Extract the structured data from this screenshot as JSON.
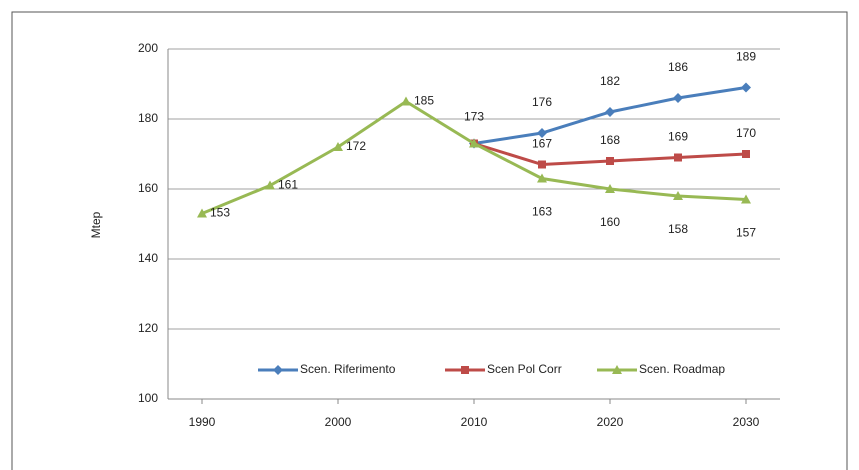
{
  "chart_data": {
    "type": "line",
    "y_label": "Mtep",
    "x": [
      1990,
      1995,
      2000,
      2005,
      2010,
      2015,
      2020,
      2025,
      2030
    ],
    "xlim": [
      1987.5,
      2032.5
    ],
    "xticks": [
      1990,
      2000,
      2010,
      2020,
      2030
    ],
    "ylim": [
      100,
      200
    ],
    "yticks": [
      100,
      120,
      140,
      160,
      180,
      200
    ],
    "grid": true,
    "legend": "bottom",
    "series": [
      {
        "name": "Scen. Riferimento",
        "color": "#4a7ebb",
        "marker": "diamond",
        "values": [
          null,
          null,
          null,
          null,
          173,
          176,
          182,
          186,
          189
        ]
      },
      {
        "name": "Scen Pol Corr",
        "color": "#be4b48",
        "marker": "square",
        "values": [
          null,
          null,
          null,
          null,
          173,
          167,
          168,
          169,
          170
        ]
      },
      {
        "name": "Scen. Roadmap",
        "color": "#98b954",
        "marker": "triangle",
        "values": [
          153,
          161,
          172,
          185,
          173,
          163,
          160,
          158,
          157
        ]
      }
    ]
  }
}
